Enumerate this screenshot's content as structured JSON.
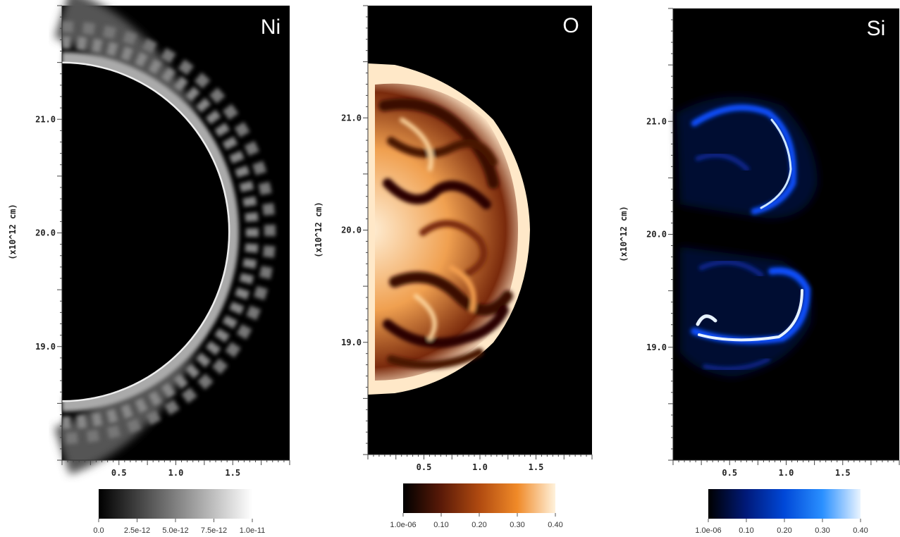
{
  "chart_data": [
    {
      "type": "heatmap",
      "title": "Ni",
      "ylabel": "(x10^12 cm)",
      "xticks": [
        "0.5",
        "1.0",
        "1.5"
      ],
      "xtick_values": [
        0.5,
        1.0,
        1.5
      ],
      "yticks": [
        "21.0",
        "20.0",
        "19.0"
      ],
      "ytick_values": [
        21.0,
        20.0,
        19.0
      ],
      "xlim": [
        0.0,
        2.0
      ],
      "ylim": [
        18.0,
        22.0
      ],
      "colorbar": {
        "labels": [
          "0.0",
          "2.5e-12",
          "5.0e-12",
          "7.5e-12",
          "1.0e-11"
        ],
        "values": [
          0.0,
          2.5e-12,
          5e-12,
          7.5e-12,
          1e-11
        ],
        "colors": [
          "#000000",
          "#ffffff"
        ]
      }
    },
    {
      "type": "heatmap",
      "title": "O",
      "ylabel": "(x10^12 cm)",
      "xticks": [
        "0.5",
        "1.0",
        "1.5"
      ],
      "xtick_values": [
        0.5,
        1.0,
        1.5
      ],
      "yticks": [
        "21.0",
        "20.0",
        "19.0"
      ],
      "ytick_values": [
        21.0,
        20.0,
        19.0
      ],
      "xlim": [
        0.0,
        2.0
      ],
      "ylim": [
        18.0,
        22.0
      ],
      "colorbar": {
        "labels": [
          "1.0e-06",
          "0.10",
          "0.20",
          "0.30",
          "0.40"
        ],
        "values": [
          1e-06,
          0.1,
          0.2,
          0.3,
          0.4
        ],
        "colors": [
          "#000000",
          "#5a1a08",
          "#b04a10",
          "#f08a28",
          "#fff2dc"
        ]
      }
    },
    {
      "type": "heatmap",
      "title": "Si",
      "ylabel": "(x10^12 cm)",
      "xticks": [
        "0.5",
        "1.0",
        "1.5"
      ],
      "xtick_values": [
        0.5,
        1.0,
        1.5
      ],
      "yticks": [
        "21.0",
        "20.0",
        "19.0"
      ],
      "ytick_values": [
        21.0,
        20.0,
        19.0
      ],
      "xlim": [
        0.0,
        2.0
      ],
      "ylim": [
        18.0,
        22.0
      ],
      "colorbar": {
        "labels": [
          "1.0e-06",
          "0.10",
          "0.20",
          "0.30",
          "0.40"
        ],
        "values": [
          1e-06,
          0.1,
          0.2,
          0.3,
          0.4
        ],
        "colors": [
          "#000000",
          "#001a7a",
          "#0048d8",
          "#2a90ff",
          "#eaf4ff"
        ]
      }
    }
  ]
}
